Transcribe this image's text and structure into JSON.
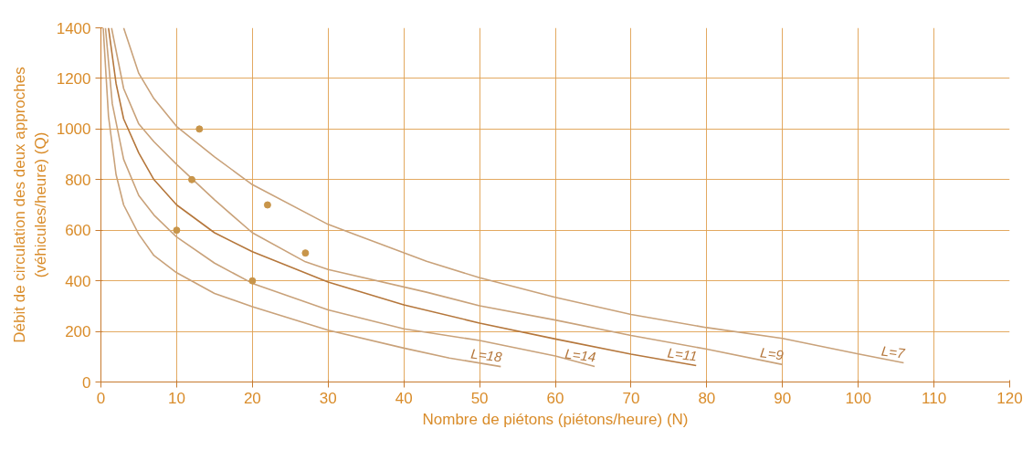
{
  "chart_data": {
    "type": "line",
    "xlabel": "Nombre de piétons (piétons/heure) (N)",
    "ylabel": "Débit de circulation des deux approches\n(véhicules/heure) (Q)",
    "xlim": [
      0,
      120
    ],
    "ylim": [
      0,
      1400
    ],
    "xticks": [
      0,
      10,
      20,
      30,
      40,
      50,
      60,
      70,
      80,
      90,
      100,
      110,
      120
    ],
    "yticks": [
      0,
      200,
      400,
      600,
      800,
      1000,
      1200,
      1400
    ],
    "grid": true,
    "series": [
      {
        "name": "L=18",
        "color": "#c9a27a",
        "x": [
          0.3,
          1,
          2,
          3,
          5,
          7,
          10,
          15,
          20,
          30,
          40,
          46,
          52.8
        ],
        "values": [
          1400,
          1050,
          820,
          700,
          584,
          500,
          432,
          350,
          298,
          205,
          134,
          95,
          61
        ]
      },
      {
        "name": "L=14",
        "color": "#c9a27a",
        "x": [
          0.6,
          1.5,
          3,
          5,
          7,
          10,
          15,
          20,
          30,
          40,
          50,
          60,
          65.2
        ],
        "values": [
          1400,
          1100,
          880,
          737,
          660,
          573,
          470,
          390,
          285,
          210,
          164,
          103,
          61
        ]
      },
      {
        "name": "L=11",
        "color": "#b5773c",
        "x": [
          1,
          2,
          3,
          5,
          7,
          10,
          15,
          20,
          30,
          40,
          50,
          60,
          70,
          78.6
        ],
        "values": [
          1400,
          1180,
          1040,
          905,
          800,
          700,
          590,
          515,
          395,
          305,
          233,
          170,
          110,
          65
        ]
      },
      {
        "name": "L=9",
        "color": "#c9a27a",
        "x": [
          1.4,
          3,
          5,
          7,
          10,
          15,
          20,
          27,
          30,
          43,
          50,
          60,
          70,
          80,
          90
        ],
        "values": [
          1400,
          1160,
          1020,
          950,
          860,
          720,
          590,
          475,
          445,
          355,
          301,
          245,
          184,
          130,
          69
        ]
      },
      {
        "name": "L=7",
        "color": "#c9a27a",
        "x": [
          3,
          5,
          7,
          10,
          15,
          20,
          30,
          43,
          50,
          60,
          70,
          80,
          90,
          100,
          106
        ],
        "values": [
          1400,
          1220,
          1120,
          1010,
          890,
          780,
          623,
          477,
          412,
          335,
          267,
          215,
          172,
          111,
          76
        ]
      },
      {
        "type": "scatter",
        "marker": "circle",
        "color": "#c8954a",
        "x": [
          13,
          12,
          22,
          10,
          27,
          20
        ],
        "values": [
          1000,
          800,
          700,
          600,
          510,
          400
        ]
      }
    ]
  }
}
